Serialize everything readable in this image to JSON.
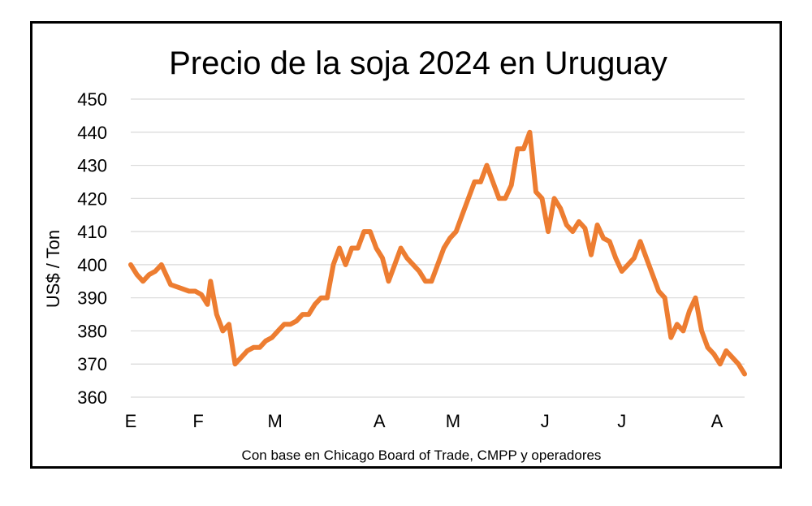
{
  "chart_data": {
    "type": "line",
    "title": "Precio de la soja 2024 en Uruguay",
    "ylabel": "US$ / Ton",
    "source_note": "Con base en Chicago Board of Trade, CMPP y operadores",
    "ylim": [
      360,
      450
    ],
    "yticks": [
      360,
      370,
      380,
      390,
      400,
      410,
      420,
      430,
      440,
      450
    ],
    "xlim": [
      0,
      100
    ],
    "x_ticks": [
      {
        "label": "E",
        "x": 0
      },
      {
        "label": "F",
        "x": 11
      },
      {
        "label": "M",
        "x": 23.5
      },
      {
        "label": "A",
        "x": 40.5
      },
      {
        "label": "M",
        "x": 52.5
      },
      {
        "label": "J",
        "x": 67.5
      },
      {
        "label": "J",
        "x": 80
      },
      {
        "label": "A",
        "x": 95.5
      }
    ],
    "grid": true,
    "line_color": "#ed7d31",
    "series": [
      {
        "values": [
          [
            0,
            400
          ],
          [
            1,
            397
          ],
          [
            2,
            395
          ],
          [
            3,
            397
          ],
          [
            4,
            398
          ],
          [
            5,
            400
          ],
          [
            6.5,
            394
          ],
          [
            8,
            393
          ],
          [
            9.5,
            392
          ],
          [
            10.5,
            392
          ],
          [
            11.5,
            391
          ],
          [
            12.5,
            388
          ],
          [
            13,
            395
          ],
          [
            14,
            385
          ],
          [
            15,
            380
          ],
          [
            16,
            382
          ],
          [
            17,
            370
          ],
          [
            18,
            372
          ],
          [
            19,
            374
          ],
          [
            20,
            375
          ],
          [
            21,
            375
          ],
          [
            22,
            377
          ],
          [
            23,
            378
          ],
          [
            24,
            380
          ],
          [
            25,
            382
          ],
          [
            26,
            382
          ],
          [
            27,
            383
          ],
          [
            28,
            385
          ],
          [
            29,
            385
          ],
          [
            30,
            388
          ],
          [
            31,
            390
          ],
          [
            32,
            390
          ],
          [
            33,
            400
          ],
          [
            34,
            405
          ],
          [
            35,
            400
          ],
          [
            36,
            405
          ],
          [
            37,
            405
          ],
          [
            38,
            410
          ],
          [
            39,
            410
          ],
          [
            40,
            405
          ],
          [
            41,
            402
          ],
          [
            42,
            395
          ],
          [
            43,
            400
          ],
          [
            44,
            405
          ],
          [
            45,
            402
          ],
          [
            46,
            400
          ],
          [
            47,
            398
          ],
          [
            48,
            395
          ],
          [
            49,
            395
          ],
          [
            50,
            400
          ],
          [
            51,
            405
          ],
          [
            52,
            408
          ],
          [
            53,
            410
          ],
          [
            54,
            415
          ],
          [
            55,
            420
          ],
          [
            56,
            425
          ],
          [
            57,
            425
          ],
          [
            58,
            430
          ],
          [
            59,
            425
          ],
          [
            60,
            420
          ],
          [
            61,
            420
          ],
          [
            62,
            424
          ],
          [
            63,
            435
          ],
          [
            64,
            435
          ],
          [
            65,
            440
          ],
          [
            66,
            422
          ],
          [
            67,
            420
          ],
          [
            68,
            410
          ],
          [
            69,
            420
          ],
          [
            70,
            417
          ],
          [
            71,
            412
          ],
          [
            72,
            410
          ],
          [
            73,
            413
          ],
          [
            74,
            411
          ],
          [
            75,
            403
          ],
          [
            76,
            412
          ],
          [
            77,
            408
          ],
          [
            78,
            407
          ],
          [
            79,
            402
          ],
          [
            80,
            398
          ],
          [
            81,
            400
          ],
          [
            82,
            402
          ],
          [
            83,
            407
          ],
          [
            84,
            402
          ],
          [
            85,
            397
          ],
          [
            86,
            392
          ],
          [
            87,
            390
          ],
          [
            88,
            378
          ],
          [
            89,
            382
          ],
          [
            90,
            380
          ],
          [
            91,
            386
          ],
          [
            92,
            390
          ],
          [
            93,
            380
          ],
          [
            94,
            375
          ],
          [
            95,
            373
          ],
          [
            96,
            370
          ],
          [
            97,
            374
          ],
          [
            98,
            372
          ],
          [
            99,
            370
          ],
          [
            100,
            367
          ]
        ]
      }
    ]
  }
}
